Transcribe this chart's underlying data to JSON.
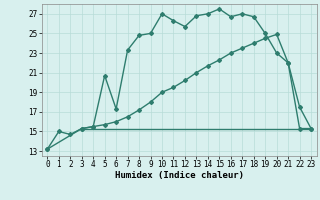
{
  "xlabel": "Humidex (Indice chaleur)",
  "line1_x": [
    0,
    1,
    2,
    3,
    4,
    5,
    6,
    7,
    8,
    9,
    10,
    11,
    12,
    13,
    14,
    15,
    16,
    17,
    18,
    19,
    20,
    21,
    22,
    23
  ],
  "line1_y": [
    13.2,
    15.0,
    14.7,
    15.3,
    15.5,
    20.7,
    17.3,
    23.3,
    24.8,
    25.0,
    27.0,
    26.3,
    25.7,
    26.8,
    27.0,
    27.5,
    26.7,
    27.0,
    26.7,
    25.0,
    23.0,
    22.0,
    17.5,
    15.3
  ],
  "line2_x": [
    0,
    3,
    4,
    5,
    6,
    7,
    8,
    9,
    10,
    11,
    12,
    13,
    14,
    15,
    16,
    17,
    18,
    19,
    20,
    21,
    22,
    23
  ],
  "line2_y": [
    13.2,
    15.3,
    15.5,
    15.7,
    16.0,
    16.5,
    17.2,
    18.0,
    19.0,
    19.5,
    20.2,
    21.0,
    21.7,
    22.3,
    23.0,
    23.5,
    24.0,
    24.5,
    24.9,
    22.0,
    15.3,
    15.3
  ],
  "line3_x": [
    3,
    21,
    22,
    23
  ],
  "line3_y": [
    15.3,
    15.3,
    15.3,
    15.3
  ],
  "xlim": [
    -0.5,
    23.5
  ],
  "ylim": [
    12.5,
    28.0
  ],
  "yticks": [
    13,
    15,
    17,
    19,
    21,
    23,
    25,
    27
  ],
  "xticks": [
    0,
    1,
    2,
    3,
    4,
    5,
    6,
    7,
    8,
    9,
    10,
    11,
    12,
    13,
    14,
    15,
    16,
    17,
    18,
    19,
    20,
    21,
    22,
    23
  ],
  "line_color": "#2e7d6e",
  "bg_color": "#d8f0ee",
  "grid_color": "#b8dcd8",
  "marker": "D",
  "marker_size": 2,
  "line_width": 1.0,
  "xlabel_fontsize": 6.5,
  "tick_fontsize": 5.5
}
